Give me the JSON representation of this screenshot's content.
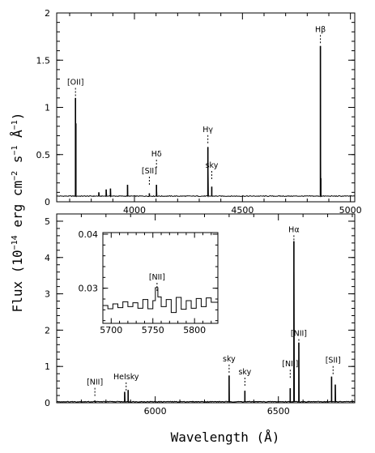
{
  "figure": {
    "ylabel_main": "Flux (10",
    "ylabel_exp1": "−14",
    "ylabel_mid": " erg cm",
    "ylabel_exp2": "−2",
    "ylabel_mid2": " s",
    "ylabel_exp3": "−1",
    "ylabel_end": " Å",
    "ylabel_exp4": "−1",
    "ylabel_close": ")",
    "xlabel": "Wavelength (Å)"
  },
  "chart_data": [
    {
      "type": "line",
      "panel": "top",
      "xlim": [
        3640,
        5020
      ],
      "ylim": [
        0,
        2
      ],
      "xticks": [
        4000,
        4500,
        5000
      ],
      "yticks": [
        0,
        0.5,
        1,
        1.5,
        2
      ],
      "ytick_labels": [
        "0",
        "0.5",
        "1",
        "1.5",
        "2"
      ],
      "continuum": 0.06,
      "lines": [
        {
          "x": 3727,
          "peak": 1.1
        },
        {
          "x": 3728.8,
          "peak": 0.83
        },
        {
          "x": 3835,
          "peak": 0.1
        },
        {
          "x": 3869,
          "peak": 0.13
        },
        {
          "x": 3889,
          "peak": 0.14
        },
        {
          "x": 3968,
          "peak": 0.18
        },
        {
          "x": 4069,
          "peak": 0.09
        },
        {
          "x": 4102,
          "peak": 0.18
        },
        {
          "x": 4340,
          "peak": 0.58
        },
        {
          "x": 4358,
          "peak": 0.16
        },
        {
          "x": 4861,
          "peak": 1.65
        },
        {
          "x": 4863,
          "peak": 0.25
        }
      ],
      "annotations": [
        {
          "text": "[OII]",
          "x": 3727,
          "y": 1.24
        },
        {
          "text": "[SII]",
          "x": 4069,
          "y": 0.3
        },
        {
          "text": "Hδ",
          "x": 4102,
          "y": 0.48
        },
        {
          "text": "Hγ",
          "x": 4340,
          "y": 0.74
        },
        {
          "text": "sky",
          "x": 4358,
          "y": 0.36
        },
        {
          "text": "Hβ",
          "x": 4861,
          "y": 1.8
        }
      ]
    },
    {
      "type": "line",
      "panel": "bottom",
      "xlim": [
        5600,
        6810
      ],
      "ylim": [
        0,
        5.2
      ],
      "xticks": [
        6000,
        6500
      ],
      "yticks": [
        0,
        1,
        2,
        3,
        4,
        5
      ],
      "ytick_labels": [
        "0",
        "1",
        "2",
        "3",
        "4",
        "5"
      ],
      "continuum": 0.03,
      "lines": [
        {
          "x": 5755,
          "peak": 0.06
        },
        {
          "x": 5876,
          "peak": 0.3
        },
        {
          "x": 5890,
          "peak": 0.35
        },
        {
          "x": 6300,
          "peak": 0.75
        },
        {
          "x": 6364,
          "peak": 0.33
        },
        {
          "x": 6548,
          "peak": 0.4
        },
        {
          "x": 6563,
          "peak": 4.45
        },
        {
          "x": 6583,
          "peak": 1.65
        },
        {
          "x": 6716,
          "peak": 0.72
        },
        {
          "x": 6731,
          "peak": 0.5
        }
      ],
      "annotations": [
        {
          "text": "[NII]",
          "x": 5755,
          "y": 0.5
        },
        {
          "text": "HeIsky",
          "x": 5882,
          "y": 0.65
        },
        {
          "text": "sky",
          "x": 6300,
          "y": 1.14
        },
        {
          "text": "sky",
          "x": 6364,
          "y": 0.78
        },
        {
          "text": "[NII]",
          "x": 6548,
          "y": 1.0
        },
        {
          "text": "Hα",
          "x": 6563,
          "y": 4.7
        },
        {
          "text": "[NII]",
          "x": 6583,
          "y": 1.84
        },
        {
          "text": "[SII]",
          "x": 6722,
          "y": 1.1
        }
      ]
    },
    {
      "type": "line",
      "panel": "inset",
      "xlim": [
        5690,
        5828
      ],
      "ylim": [
        0.0235,
        0.0403
      ],
      "xticks": [
        5700,
        5750,
        5800
      ],
      "yticks": [
        0.03,
        0.04
      ],
      "ytick_labels": [
        "0.03",
        "0.04"
      ],
      "x": [
        5690,
        5696,
        5702,
        5708,
        5714,
        5720,
        5726,
        5732,
        5738,
        5744,
        5750,
        5753,
        5756,
        5760,
        5766,
        5772,
        5778,
        5784,
        5790,
        5796,
        5802,
        5808,
        5814,
        5820,
        5828
      ],
      "y": [
        0.0268,
        0.0262,
        0.0271,
        0.0264,
        0.0275,
        0.0266,
        0.0273,
        0.0263,
        0.0279,
        0.0262,
        0.0277,
        0.0301,
        0.0284,
        0.0266,
        0.0279,
        0.0255,
        0.0283,
        0.0261,
        0.0277,
        0.0263,
        0.0281,
        0.0266,
        0.0282,
        0.0274,
        0.0285
      ],
      "annotations": [
        {
          "text": "[NII]",
          "x": 5755,
          "y": 0.0316
        }
      ]
    }
  ]
}
